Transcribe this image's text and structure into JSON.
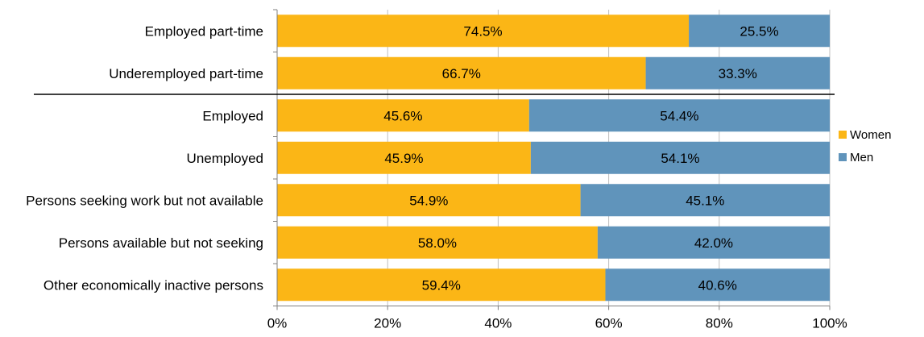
{
  "chart_data": {
    "type": "bar",
    "orientation": "horizontal",
    "stacked": "percent",
    "categories": [
      "Employed part-time",
      "Underemployed part-time",
      "Employed",
      "Unemployed",
      "Persons seeking work but not available",
      "Persons available but not seeking",
      "Other economically inactive persons"
    ],
    "series": [
      {
        "name": "Women",
        "color": "#FBB616",
        "values": [
          74.5,
          66.7,
          45.6,
          45.9,
          54.9,
          58.0,
          59.4
        ],
        "labels": [
          "74.5%",
          "66.7%",
          "45.6%",
          "45.9%",
          "54.9%",
          "58.0%",
          "59.4%"
        ]
      },
      {
        "name": "Men",
        "color": "#6094BB",
        "values": [
          25.5,
          33.3,
          54.4,
          54.1,
          45.1,
          42.0,
          40.6
        ],
        "labels": [
          "25.5%",
          "33.3%",
          "54.4%",
          "54.1%",
          "45.1%",
          "42.0%",
          "40.6%"
        ]
      }
    ],
    "xlim": [
      0,
      100
    ],
    "xticks": [
      "0%",
      "20%",
      "40%",
      "60%",
      "80%",
      "100%"
    ],
    "title": "",
    "xlabel": "",
    "ylabel": "",
    "grid": "vertical",
    "legend_position": "right",
    "separator_after_category": 1
  }
}
